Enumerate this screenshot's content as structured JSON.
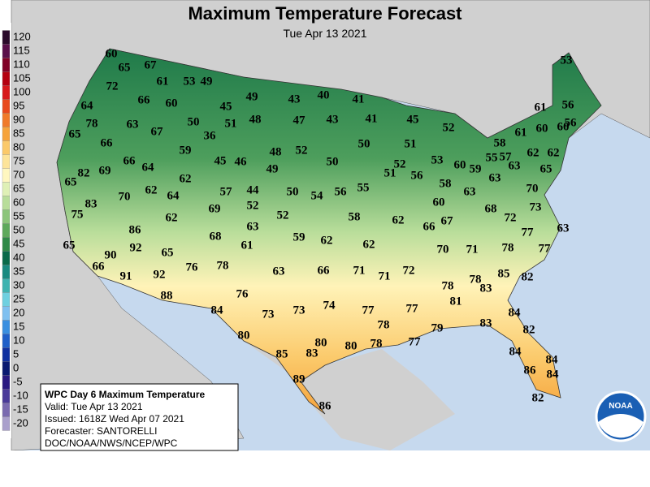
{
  "header": {
    "title": "Maximum Temperature Forecast",
    "subtitle": "Tue Apr 13 2021"
  },
  "legend": {
    "values": [
      120,
      115,
      110,
      105,
      100,
      95,
      90,
      85,
      80,
      75,
      70,
      65,
      60,
      55,
      50,
      45,
      40,
      35,
      30,
      25,
      20,
      15,
      10,
      5,
      0,
      -5,
      -10,
      -15,
      -20
    ],
    "colors": [
      "#2b0b2b",
      "#5a0f4a",
      "#800026",
      "#b40010",
      "#d7191c",
      "#e8491d",
      "#f07a2a",
      "#f6a33c",
      "#fbc96a",
      "#fde49a",
      "#fff7c0",
      "#dff0b6",
      "#b8dd9a",
      "#8cc57b",
      "#5ea95c",
      "#2f8a47",
      "#0a6a4a",
      "#1a8a80",
      "#3fb3b0",
      "#6fd0e0",
      "#7fc0f0",
      "#3a8fe0",
      "#1f5fc8",
      "#1030a0",
      "#0a1a70",
      "#2a1a80",
      "#4a3a99",
      "#7a6ab0",
      "#aaa0cc"
    ]
  },
  "map_labels": [
    60,
    65,
    67,
    72,
    61,
    53,
    49,
    66,
    60,
    64,
    45,
    49,
    43,
    40,
    41,
    78,
    63,
    67,
    50,
    51,
    48,
    47,
    43,
    41,
    45,
    52,
    65,
    66,
    36,
    59,
    48,
    52,
    50,
    51,
    58,
    61,
    60,
    60,
    56,
    61,
    56,
    53,
    55,
    57,
    62,
    62,
    66,
    64,
    45,
    46,
    49,
    50,
    52,
    53,
    60,
    59,
    63,
    65,
    82,
    65,
    69,
    62,
    62,
    64,
    51,
    56,
    58,
    63,
    70,
    57,
    44,
    52,
    50,
    54,
    56,
    55,
    70,
    83,
    60,
    63,
    69,
    62,
    52,
    58,
    62,
    66,
    67,
    68,
    72,
    73,
    75,
    63,
    86,
    68,
    59,
    62,
    62,
    77,
    63,
    65,
    92,
    90,
    65,
    61,
    70,
    71,
    78,
    77,
    76,
    78,
    63,
    66,
    71,
    71,
    72,
    66,
    91,
    92,
    78,
    78,
    83,
    85,
    82,
    88,
    76,
    81,
    84,
    73,
    73,
    74,
    77,
    77,
    84,
    83,
    78,
    79,
    82,
    80,
    80,
    80,
    78,
    77,
    85,
    83,
    84,
    84,
    86,
    84,
    89,
    82,
    86
  ],
  "info_box": {
    "lines": [
      "WPC Day 6 Maximum Temperature",
      "Valid: Tue Apr 13 2021",
      "Issued: 1618Z Wed Apr 07 2021",
      "Forecaster: SANTORELLI",
      "DOC/NOAA/NWS/NCEP/WPC"
    ]
  },
  "logo": "NOAA"
}
